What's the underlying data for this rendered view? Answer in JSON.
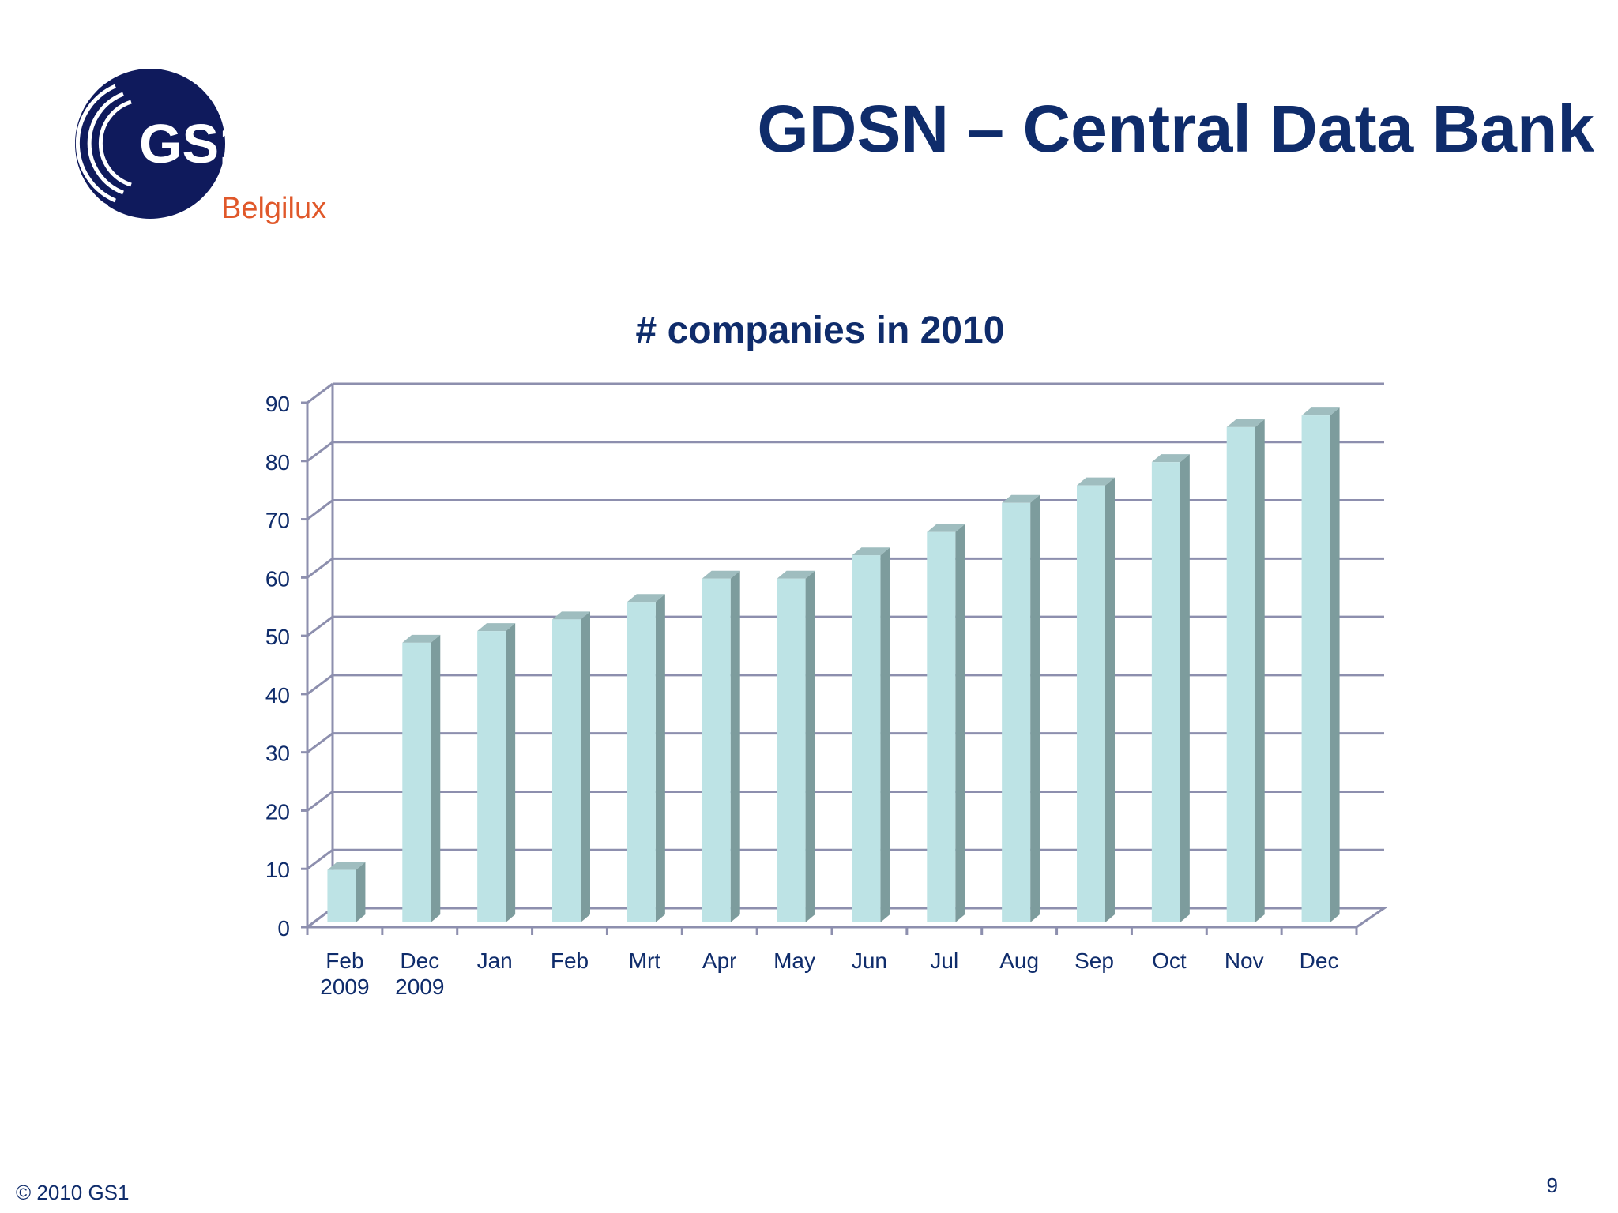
{
  "slide": {
    "title": "GDSN – Central Data Bank",
    "footer": "© 2010 GS1",
    "page_number": "9"
  },
  "logo": {
    "mark": "GS1",
    "subtitle": "Belgilux",
    "colors": {
      "navy": "#0f1a5c",
      "orange": "#e0582a"
    }
  },
  "colors": {
    "title": "#0f2c6b",
    "bar_front": "#bde3e5",
    "bar_side": "#7d9c9d",
    "bar_top": "#9fbdbf",
    "grid": "#8d8fae",
    "axis_text": "#0f2c6b"
  },
  "chart_data": {
    "type": "bar",
    "title": "# companies in 2010",
    "xlabel": "",
    "ylabel": "",
    "categories": [
      [
        "Feb",
        "2009"
      ],
      [
        "Dec",
        "2009"
      ],
      [
        "Jan"
      ],
      [
        "Feb"
      ],
      [
        "Mrt"
      ],
      [
        "Apr"
      ],
      [
        "May"
      ],
      [
        "Jun"
      ],
      [
        "Jul"
      ],
      [
        "Aug"
      ],
      [
        "Sep"
      ],
      [
        "Oct"
      ],
      [
        "Nov"
      ],
      [
        "Dec"
      ]
    ],
    "values": [
      9,
      48,
      50,
      52,
      55,
      59,
      59,
      63,
      67,
      72,
      75,
      79,
      85,
      87
    ],
    "ylim": [
      0,
      90
    ],
    "yticks": [
      0,
      10,
      20,
      30,
      40,
      50,
      60,
      70,
      80,
      90
    ],
    "grid": true,
    "style": "3d-column",
    "legend": "none"
  }
}
